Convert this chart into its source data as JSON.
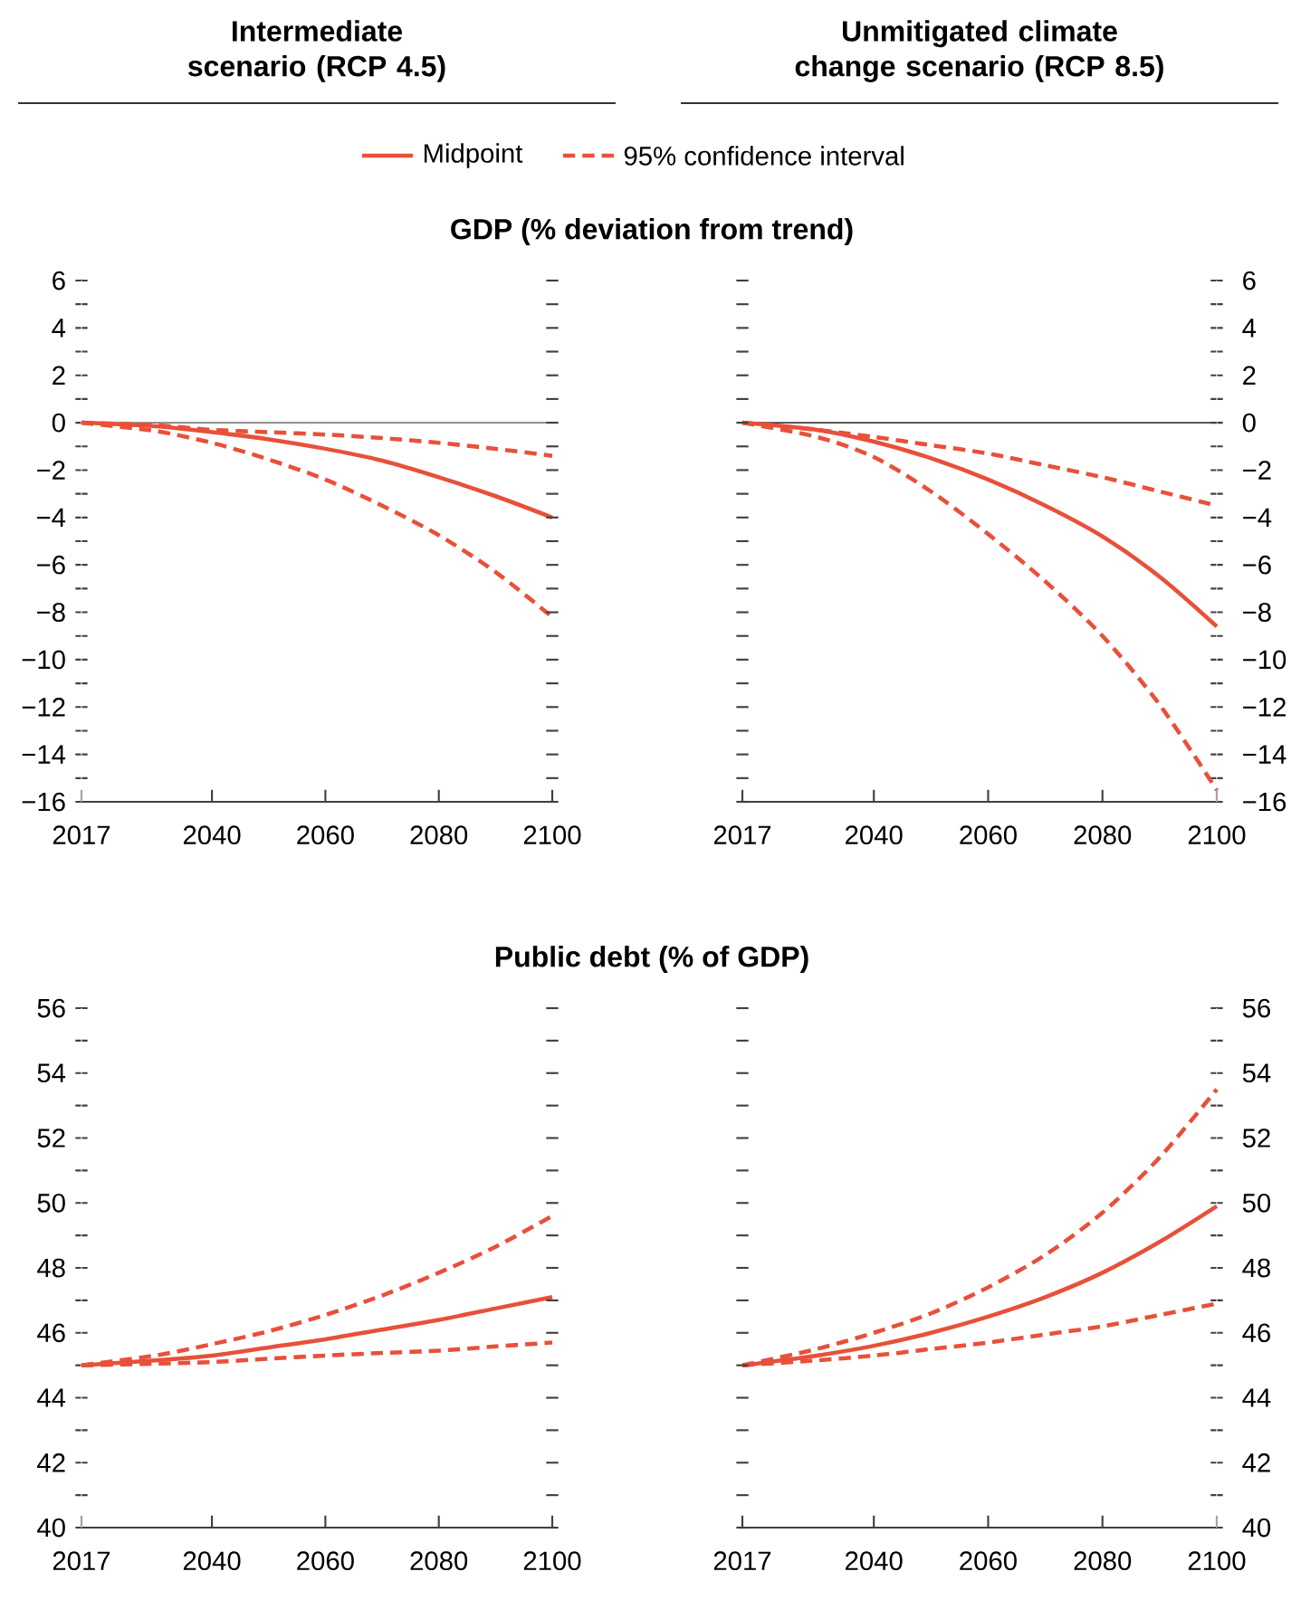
{
  "chart_data": [
    {
      "type": "line",
      "title": "Intermediate scenario (RCP 4.5)",
      "subtitle": "GDP (% deviation from trend)",
      "legend": "top",
      "x": [
        2017,
        2030,
        2040,
        2050,
        2060,
        2070,
        2080,
        2090,
        2100
      ],
      "xlim": [
        2017,
        2100
      ],
      "xticks": [
        2017,
        2040,
        2060,
        2080,
        2100
      ],
      "ylim": [
        -16,
        6
      ],
      "yticks": [
        {
          "value": -16,
          "label": "−16"
        },
        {
          "value": -15,
          "label": null
        },
        {
          "value": -14,
          "label": "−14"
        },
        {
          "value": -13,
          "label": null
        },
        {
          "value": -12,
          "label": "−12"
        },
        {
          "value": -11,
          "label": null
        },
        {
          "value": -10,
          "label": "−10"
        },
        {
          "value": -9,
          "label": null
        },
        {
          "value": -8,
          "label": "−8"
        },
        {
          "value": -7,
          "label": null
        },
        {
          "value": -6,
          "label": "−6"
        },
        {
          "value": -5,
          "label": null
        },
        {
          "value": -4,
          "label": "−4"
        },
        {
          "value": -3,
          "label": null
        },
        {
          "value": -2,
          "label": "−2"
        },
        {
          "value": -1,
          "label": null
        },
        0,
        {
          "value": 1,
          "label": null
        },
        2,
        {
          "value": 3,
          "label": null
        },
        4,
        {
          "value": 5,
          "label": null
        },
        6
      ],
      "ref_lines": [
        {
          "axis": "y",
          "value": 0,
          "color": "#808080"
        }
      ],
      "series": [
        {
          "name": "Midpoint",
          "color": "#e8503a",
          "line_style": "solid",
          "values": [
            0,
            -0.15,
            -0.4,
            -0.7,
            -1.1,
            -1.6,
            -2.3,
            -3.1,
            -4.0
          ]
        },
        {
          "name": "95% confidence interval",
          "color": "#e8503a",
          "line_style": "dashed",
          "values": [
            0,
            -0.1,
            -0.3,
            -0.4,
            -0.5,
            -0.65,
            -0.85,
            -1.1,
            -1.4
          ]
        },
        {
          "color": "#e8503a",
          "line_style": "dashed",
          "values": [
            0,
            -0.35,
            -0.85,
            -1.55,
            -2.4,
            -3.5,
            -4.75,
            -6.3,
            -8.2
          ]
        }
      ]
    },
    {
      "type": "line",
      "title": "Unmitigated climate change scenario (RCP 8.5)",
      "x": [
        2017,
        2030,
        2040,
        2050,
        2060,
        2070,
        2080,
        2090,
        2100
      ],
      "xlim": [
        2017,
        2100
      ],
      "xticks": [
        2017,
        2040,
        2060,
        2080,
        2100
      ],
      "y2lim": [
        -16,
        6
      ],
      "y2ticks": [
        {
          "value": -16,
          "label": "−16"
        },
        {
          "value": -15,
          "label": null
        },
        {
          "value": -14,
          "label": "−14"
        },
        {
          "value": -13,
          "label": null
        },
        {
          "value": -12,
          "label": "−12"
        },
        {
          "value": -11,
          "label": null
        },
        {
          "value": -10,
          "label": "−10"
        },
        {
          "value": -9,
          "label": null
        },
        {
          "value": -8,
          "label": "−8"
        },
        {
          "value": -7,
          "label": null
        },
        {
          "value": -6,
          "label": "−6"
        },
        {
          "value": -5,
          "label": null
        },
        {
          "value": -4,
          "label": "−4"
        },
        {
          "value": -3,
          "label": null
        },
        {
          "value": -2,
          "label": "−2"
        },
        {
          "value": -1,
          "label": null
        },
        0,
        {
          "value": 1,
          "label": null
        },
        2,
        {
          "value": 3,
          "label": null
        },
        4,
        {
          "value": 5,
          "label": null
        },
        6
      ],
      "ref_lines": [
        {
          "axis": "y2",
          "value": 0,
          "color": "#404040"
        }
      ],
      "series": [
        {
          "color": "#e8503a",
          "line_style": "solid",
          "axis": "y2",
          "values": [
            0,
            -0.3,
            -0.8,
            -1.5,
            -2.4,
            -3.5,
            -4.8,
            -6.5,
            -8.6
          ]
        },
        {
          "color": "#e8503a",
          "line_style": "dashed",
          "axis": "y2",
          "values": [
            0,
            -0.3,
            -0.6,
            -0.95,
            -1.3,
            -1.8,
            -2.3,
            -2.9,
            -3.5
          ]
        },
        {
          "color": "#e8503a",
          "line_style": "dashed",
          "axis": "y2",
          "values": [
            0,
            -0.6,
            -1.45,
            -2.9,
            -4.7,
            -6.7,
            -9.0,
            -11.9,
            -15.5
          ]
        }
      ]
    },
    {
      "type": "line",
      "subtitle": "Public debt (% of GDP)",
      "x": [
        2017,
        2030,
        2040,
        2050,
        2060,
        2070,
        2080,
        2090,
        2100
      ],
      "xlim": [
        2017,
        2100
      ],
      "xticks": [
        2017,
        2040,
        2060,
        2080,
        2100
      ],
      "ylim": [
        40,
        56
      ],
      "yticks": [
        40,
        {
          "value": 41,
          "label": null
        },
        42,
        {
          "value": 43,
          "label": null
        },
        44,
        {
          "value": 45,
          "label": null
        },
        46,
        {
          "value": 47,
          "label": null
        },
        48,
        {
          "value": 49,
          "label": null
        },
        50,
        {
          "value": 51,
          "label": null
        },
        52,
        {
          "value": 53,
          "label": null
        },
        54,
        {
          "value": 55,
          "label": null
        },
        56
      ],
      "series": [
        {
          "color": "#e8503a",
          "line_style": "solid",
          "values": [
            45,
            45.15,
            45.3,
            45.55,
            45.8,
            46.1,
            46.4,
            46.75,
            47.1
          ]
        },
        {
          "color": "#e8503a",
          "line_style": "dashed",
          "values": [
            45,
            45.3,
            45.65,
            46.05,
            46.55,
            47.15,
            47.85,
            48.65,
            49.6
          ]
        },
        {
          "color": "#e8503a",
          "line_style": "dashed",
          "values": [
            45,
            45.05,
            45.1,
            45.2,
            45.3,
            45.38,
            45.45,
            45.58,
            45.7
          ]
        }
      ]
    },
    {
      "type": "line",
      "x": [
        2017,
        2030,
        2040,
        2050,
        2060,
        2070,
        2080,
        2090,
        2100
      ],
      "xlim": [
        2017,
        2100
      ],
      "xticks": [
        2017,
        2040,
        2060,
        2080,
        2100
      ],
      "y2lim": [
        40,
        56
      ],
      "y2ticks": [
        40,
        {
          "value": 41,
          "label": null
        },
        42,
        {
          "value": 43,
          "label": null
        },
        44,
        {
          "value": 45,
          "label": null
        },
        46,
        {
          "value": 47,
          "label": null
        },
        48,
        {
          "value": 49,
          "label": null
        },
        50,
        {
          "value": 51,
          "label": null
        },
        52,
        {
          "value": 53,
          "label": null
        },
        54,
        {
          "value": 55,
          "label": null
        },
        56
      ],
      "series": [
        {
          "color": "#e8503a",
          "line_style": "solid",
          "axis": "y2",
          "values": [
            45,
            45.3,
            45.6,
            46.0,
            46.5,
            47.1,
            47.85,
            48.8,
            49.9
          ]
        },
        {
          "color": "#e8503a",
          "line_style": "dashed",
          "axis": "y2",
          "values": [
            45,
            45.5,
            46.0,
            46.6,
            47.4,
            48.4,
            49.7,
            51.4,
            53.5
          ]
        },
        {
          "color": "#e8503a",
          "line_style": "dashed",
          "axis": "y2",
          "values": [
            45,
            45.15,
            45.3,
            45.5,
            45.7,
            45.95,
            46.2,
            46.55,
            46.9
          ]
        }
      ]
    }
  ]
}
